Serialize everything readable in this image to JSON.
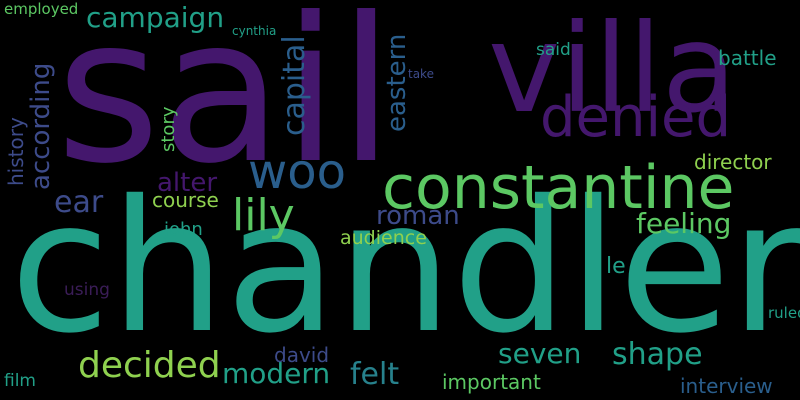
{
  "palette": {
    "background": "#000000",
    "purple": "#44176d",
    "darkpurple": "#3b1d58",
    "teal": "#21a088",
    "green": "#5cc863",
    "lime": "#8fd14f",
    "blue": "#2a5e8c",
    "indigo": "#3d4b8a",
    "midteal": "#27818c"
  },
  "words": [
    "sail",
    "chandler",
    "villa",
    "constantine",
    "denied",
    "woo",
    "lily",
    "campaign",
    "capital",
    "eastern",
    "according",
    "history",
    "ear",
    "alter",
    "roman",
    "feeling",
    "director",
    "battle",
    "said",
    "story",
    "course",
    "john",
    "audience",
    "decided",
    "modern",
    "felt",
    "seven",
    "shape",
    "important",
    "interview",
    "david",
    "film",
    "using",
    "le",
    "ruled",
    "employed",
    "cynthia",
    "take"
  ]
}
